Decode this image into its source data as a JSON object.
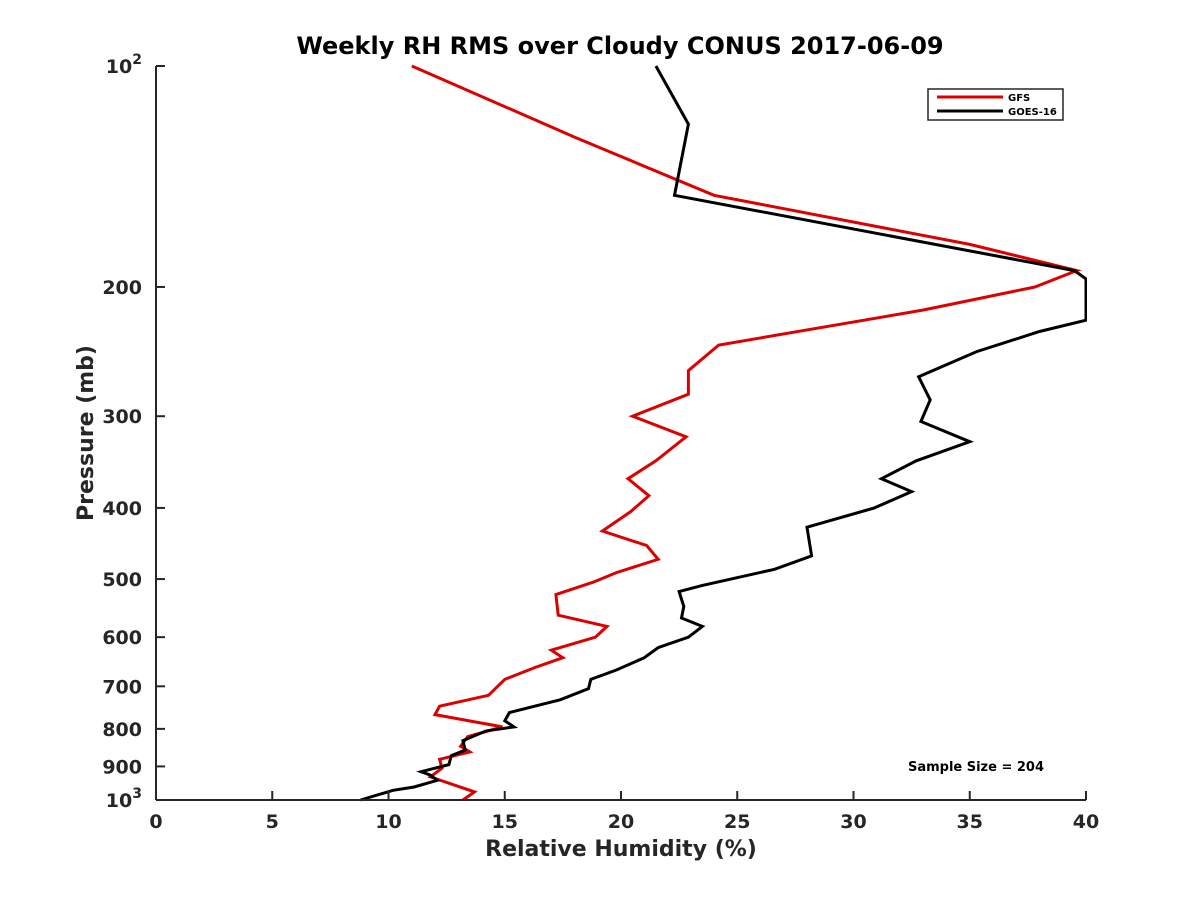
{
  "chart_data": {
    "type": "line",
    "title": "Weekly RH RMS over Cloudy CONUS 2017-06-09",
    "xlabel": "Relative Humidity (%)",
    "ylabel": "Pressure (mb)",
    "xlim": [
      0,
      40
    ],
    "ylim": [
      100,
      1000
    ],
    "y_scale": "log",
    "y_reversed": true,
    "x_ticks": [
      "0",
      "5",
      "10",
      "15",
      "20",
      "25",
      "30",
      "35",
      "40"
    ],
    "y_ticks": [
      {
        "value": 100,
        "base": "10",
        "exp": "2"
      },
      {
        "value": 200,
        "label": "200"
      },
      {
        "value": 300,
        "label": "300"
      },
      {
        "value": 400,
        "label": "400"
      },
      {
        "value": 500,
        "label": "500"
      },
      {
        "value": 600,
        "label": "600"
      },
      {
        "value": 700,
        "label": "700"
      },
      {
        "value": 800,
        "label": "800"
      },
      {
        "value": 900,
        "label": "900"
      },
      {
        "value": 1000,
        "base": "10",
        "exp": "3"
      }
    ],
    "legend_position": "top-right",
    "grid": false,
    "annotation": "Sample Size = 204",
    "series": [
      {
        "name": "GFS",
        "color": "#dd0000",
        "points": [
          [
            11.0,
            100
          ],
          [
            18.0,
            125
          ],
          [
            24.0,
            150
          ],
          [
            35.0,
            175
          ],
          [
            39.6,
            190
          ],
          [
            37.8,
            200
          ],
          [
            33.0,
            215
          ],
          [
            24.2,
            240
          ],
          [
            22.9,
            260
          ],
          [
            22.9,
            280
          ],
          [
            20.5,
            300
          ],
          [
            22.8,
            320
          ],
          [
            21.5,
            345
          ],
          [
            20.3,
            365
          ],
          [
            21.2,
            385
          ],
          [
            20.4,
            405
          ],
          [
            19.2,
            430
          ],
          [
            21.1,
            450
          ],
          [
            21.6,
            470
          ],
          [
            19.8,
            490
          ],
          [
            18.8,
            505
          ],
          [
            17.2,
            525
          ],
          [
            17.3,
            560
          ],
          [
            19.4,
            580
          ],
          [
            18.9,
            600
          ],
          [
            17.0,
            625
          ],
          [
            17.5,
            640
          ],
          [
            16.3,
            660
          ],
          [
            15.0,
            685
          ],
          [
            14.3,
            720
          ],
          [
            12.2,
            745
          ],
          [
            12.0,
            765
          ],
          [
            14.9,
            795
          ],
          [
            13.4,
            820
          ],
          [
            13.1,
            845
          ],
          [
            13.5,
            860
          ],
          [
            12.2,
            880
          ],
          [
            12.3,
            905
          ],
          [
            11.8,
            930
          ],
          [
            13.7,
            975
          ],
          [
            13.2,
            1000
          ]
        ]
      },
      {
        "name": "GOES-16",
        "color": "#000000",
        "points": [
          [
            21.5,
            100
          ],
          [
            22.9,
            120
          ],
          [
            22.3,
            150
          ],
          [
            39.5,
            190
          ],
          [
            40.0,
            195
          ],
          [
            40.0,
            222
          ],
          [
            38.0,
            230
          ],
          [
            35.3,
            245
          ],
          [
            32.8,
            265
          ],
          [
            33.3,
            285
          ],
          [
            32.9,
            305
          ],
          [
            35.0,
            325
          ],
          [
            32.7,
            345
          ],
          [
            31.2,
            365
          ],
          [
            32.5,
            380
          ],
          [
            30.9,
            400
          ],
          [
            28.0,
            425
          ],
          [
            28.2,
            465
          ],
          [
            26.6,
            485
          ],
          [
            23.5,
            510
          ],
          [
            22.5,
            520
          ],
          [
            22.7,
            545
          ],
          [
            22.6,
            565
          ],
          [
            23.5,
            580
          ],
          [
            22.9,
            600
          ],
          [
            21.6,
            620
          ],
          [
            21.0,
            640
          ],
          [
            19.8,
            665
          ],
          [
            18.7,
            685
          ],
          [
            18.6,
            705
          ],
          [
            17.4,
            730
          ],
          [
            15.2,
            760
          ],
          [
            15.0,
            780
          ],
          [
            15.4,
            795
          ],
          [
            14.2,
            805
          ],
          [
            13.2,
            830
          ],
          [
            13.3,
            855
          ],
          [
            12.7,
            870
          ],
          [
            12.6,
            895
          ],
          [
            11.4,
            915
          ],
          [
            11.8,
            925
          ],
          [
            12.1,
            940
          ],
          [
            11.1,
            960
          ],
          [
            10.2,
            970
          ],
          [
            8.8,
            1000
          ]
        ]
      }
    ]
  }
}
